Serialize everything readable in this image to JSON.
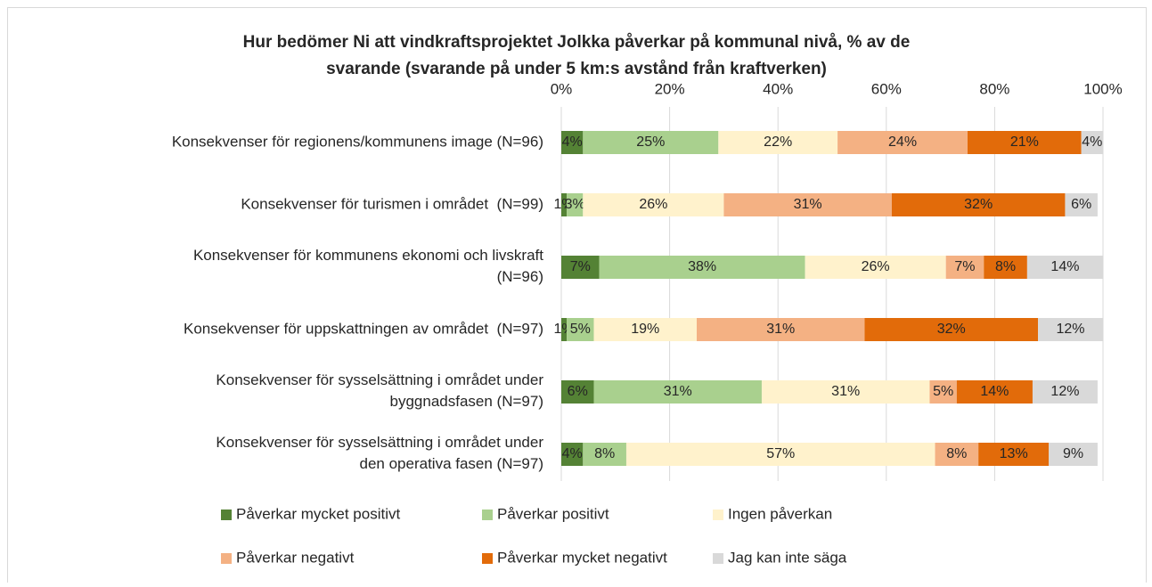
{
  "chart_data": {
    "type": "stacked_bar_horizontal",
    "title": "Hur bedömer Ni att vindkraftsprojektet Jolkka påverkar på kommunal nivå, % av de svarande (svarande på under 5 km:s avstånd från kraftverken)",
    "categories": [
      "Konsekvenser för regionens/kommunens image (N=96)",
      "Konsekvenser för turismen i området  (N=99)",
      "Konsekvenser för kommunens ekonomi och livskraft (N=96)",
      "Konsekvenser för uppskattningen av området  (N=97)",
      "Konsekvenser för sysselsättning i området under byggnadsfasen (N=97)",
      "Konsekvenser för sysselsättning i området under den operativa fasen (N=97)"
    ],
    "series": [
      {
        "name": "Påverkar mycket positivt",
        "color": "#548235",
        "values": [
          4,
          1,
          7,
          1,
          6,
          4
        ],
        "value_labels": [
          "4%",
          "1%",
          "7%",
          "1%",
          "6%",
          "4%"
        ]
      },
      {
        "name": "Påverkar positivt",
        "color": "#a9d08e",
        "values": [
          25,
          3,
          38,
          5,
          31,
          8
        ],
        "value_labels": [
          "25%",
          "3%",
          "38%",
          "5%",
          "31%",
          "8%"
        ]
      },
      {
        "name": "Ingen påverkan",
        "color": "#fff2cc",
        "values": [
          22,
          26,
          26,
          19,
          31,
          57
        ],
        "value_labels": [
          "22%",
          "26%",
          "26%",
          "19%",
          "31%",
          "57%"
        ]
      },
      {
        "name": "Påverkar negativt",
        "color": "#f4b183",
        "values": [
          24,
          31,
          7,
          31,
          5,
          8
        ],
        "value_labels": [
          "24%",
          "31%",
          "7%",
          "31%",
          "5%",
          "8%"
        ]
      },
      {
        "name": "Påverkar mycket negativt",
        "color": "#e26b0a",
        "values": [
          21,
          32,
          8,
          32,
          14,
          13
        ],
        "value_labels": [
          "21%",
          "32%",
          "8%",
          "32%",
          "14%",
          "13%"
        ]
      },
      {
        "name": "Jag kan inte säga",
        "color": "#d9d9d9",
        "values": [
          4,
          6,
          14,
          12,
          12,
          9
        ],
        "value_labels": [
          "4%",
          "6%",
          "14%",
          "12%",
          "12%",
          "9%"
        ]
      }
    ],
    "xlim": [
      0,
      100
    ],
    "xticks": [
      {
        "value": 0,
        "label": "0%"
      },
      {
        "value": 20,
        "label": "20%"
      },
      {
        "value": 40,
        "label": "40%"
      },
      {
        "value": 60,
        "label": "60%"
      },
      {
        "value": 80,
        "label": "80%"
      },
      {
        "value": 100,
        "label": "100%"
      }
    ],
    "grid": true,
    "legend_position": "bottom"
  }
}
